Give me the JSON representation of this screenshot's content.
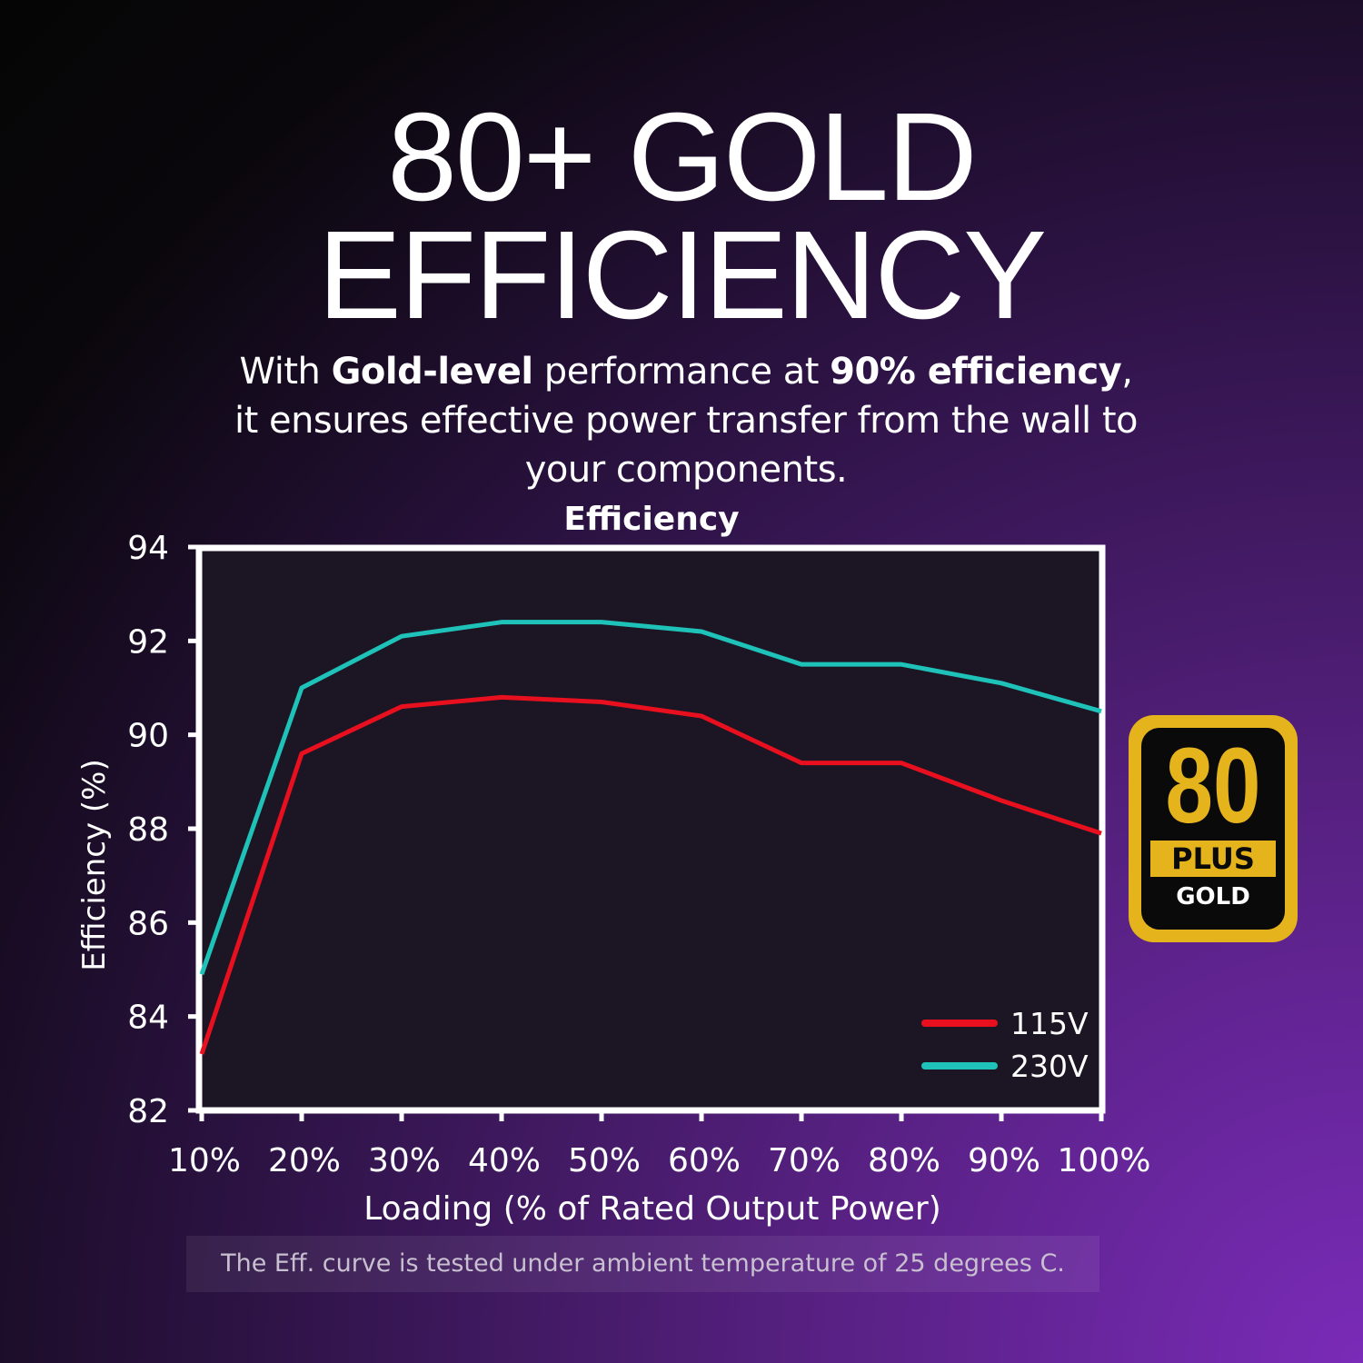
{
  "header": {
    "title_line1": "80+ GOLD",
    "title_line2": "EFFICIENCY",
    "sub_1": "With ",
    "sub_2": "Gold-level",
    "sub_3": " performance at ",
    "sub_4": "90% efficiency",
    "sub_5": ",",
    "sub_6": "it ensures effective power transfer from the wall to",
    "sub_7": "your components."
  },
  "badge": {
    "number": "80",
    "plus": "PLUS",
    "level": "GOLD",
    "color": "#e5b41d"
  },
  "footnote": "The Eff. curve is tested under ambient temperature of 25 degrees C.",
  "chart_data": {
    "type": "line",
    "title": "Efficiency",
    "xlabel": "Loading (% of Rated Output Power)",
    "ylabel": "Efficiency (%)",
    "categories": [
      "10%",
      "20%",
      "30%",
      "40%",
      "50%",
      "60%",
      "70%",
      "80%",
      "90%",
      "100%"
    ],
    "yticks": [
      "82",
      "84",
      "86",
      "88",
      "90",
      "92",
      "94"
    ],
    "ylim": [
      82,
      94
    ],
    "grid": false,
    "legend": "bottom-right",
    "series": [
      {
        "name": "115V",
        "color": "#e8101e",
        "values": [
          83.2,
          89.6,
          90.6,
          90.8,
          90.7,
          90.4,
          89.4,
          89.4,
          88.6,
          87.9
        ]
      },
      {
        "name": "230V",
        "color": "#1fc2b8",
        "values": [
          84.9,
          91.0,
          92.1,
          92.4,
          92.4,
          92.2,
          91.5,
          91.5,
          91.1,
          90.5
        ]
      }
    ]
  }
}
